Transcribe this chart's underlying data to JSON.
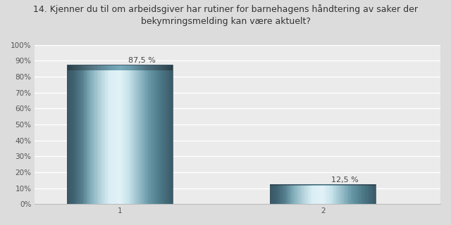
{
  "title_line1": "14. Kjenner du til om arbeidsgiver har rutiner for barnehagens håndtering av saker der",
  "title_line2": "bekymringsmelding kan være aktuelt?",
  "categories": [
    "1",
    "2"
  ],
  "values": [
    87.5,
    12.5
  ],
  "labels": [
    "87,5 %",
    "12,5 %"
  ],
  "ylim": [
    0,
    100
  ],
  "yticks": [
    0,
    10,
    20,
    30,
    40,
    50,
    60,
    70,
    80,
    90,
    100
  ],
  "ytick_labels": [
    "0%",
    "10%",
    "20%",
    "30%",
    "40%",
    "50%",
    "60%",
    "70%",
    "80%",
    "90%",
    "100%"
  ],
  "background_color": "#dcdcdc",
  "plot_bg_color": "#ebebeb",
  "grid_color": "#ffffff",
  "title_fontsize": 9.0,
  "label_fontsize": 8.0,
  "tick_fontsize": 7.5,
  "bar_width": 0.52,
  "x_positions": [
    0.5,
    1.5
  ],
  "xlim": [
    0.08,
    2.08
  ],
  "gradient_stops": [
    [
      0.0,
      "#3a5865"
    ],
    [
      0.06,
      "#3f6272"
    ],
    [
      0.14,
      "#567f8e"
    ],
    [
      0.22,
      "#82aeba"
    ],
    [
      0.32,
      "#b8d5de"
    ],
    [
      0.4,
      "#daeef5"
    ],
    [
      0.5,
      "#e2f2f7"
    ],
    [
      0.58,
      "#c8e3eb"
    ],
    [
      0.68,
      "#96bec9"
    ],
    [
      0.78,
      "#6696a5"
    ],
    [
      0.88,
      "#4d7a88"
    ],
    [
      1.0,
      "#3a5a68"
    ]
  ],
  "top_cap_stops": [
    [
      0.0,
      "#2a3f48"
    ],
    [
      0.1,
      "#3a5560"
    ],
    [
      0.25,
      "#587888"
    ],
    [
      0.4,
      "#6a9aaa"
    ],
    [
      0.5,
      "#78aabb"
    ],
    [
      0.6,
      "#6a9aaa"
    ],
    [
      0.75,
      "#507080"
    ],
    [
      0.9,
      "#3a5560"
    ],
    [
      1.0,
      "#2a3f48"
    ]
  ]
}
